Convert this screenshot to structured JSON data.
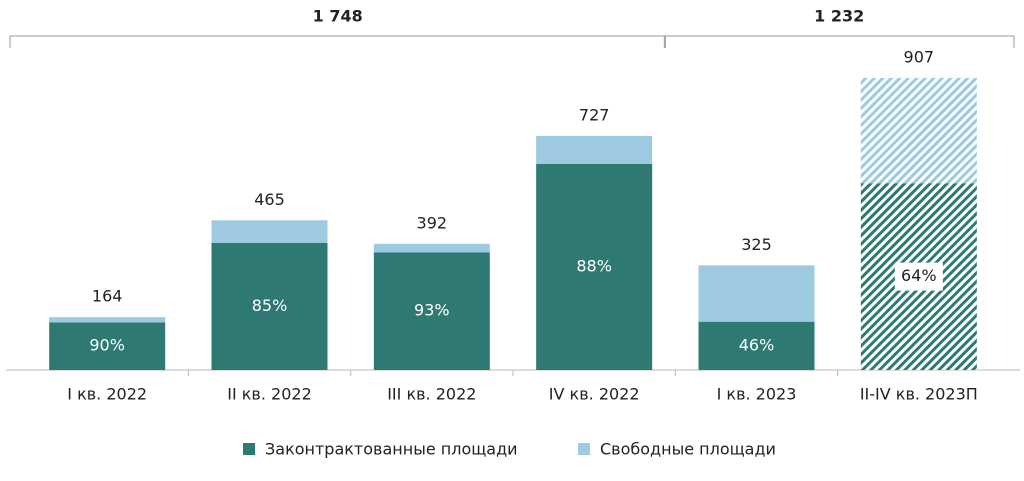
{
  "chart_data": {
    "type": "stacked-bar",
    "categories": [
      "I кв. 2022",
      "II кв. 2022",
      "III кв. 2022",
      "IV кв. 2022",
      "I кв. 2023",
      "II-IV кв. 2023П"
    ],
    "series": [
      {
        "name": "Законтрактованные площади",
        "color": "#2e7a72",
        "values": [
          148,
          395,
          365,
          640,
          150,
          580
        ],
        "share_labels": [
          "90%",
          "85%",
          "93%",
          "88%",
          "46%",
          "64%"
        ]
      },
      {
        "name": "Свободные площади",
        "color": "#9ecae1",
        "values": [
          16,
          70,
          27,
          87,
          175,
          327
        ]
      }
    ],
    "totals": [
      164,
      465,
      392,
      727,
      325,
      907
    ],
    "group_totals": [
      {
        "value": 1748,
        "label": "1 748"
      },
      {
        "value": 1232,
        "label": "1 232"
      }
    ],
    "hatched": [
      false,
      false,
      false,
      false,
      false,
      true
    ],
    "ylim": [
      0,
      1000
    ]
  }
}
